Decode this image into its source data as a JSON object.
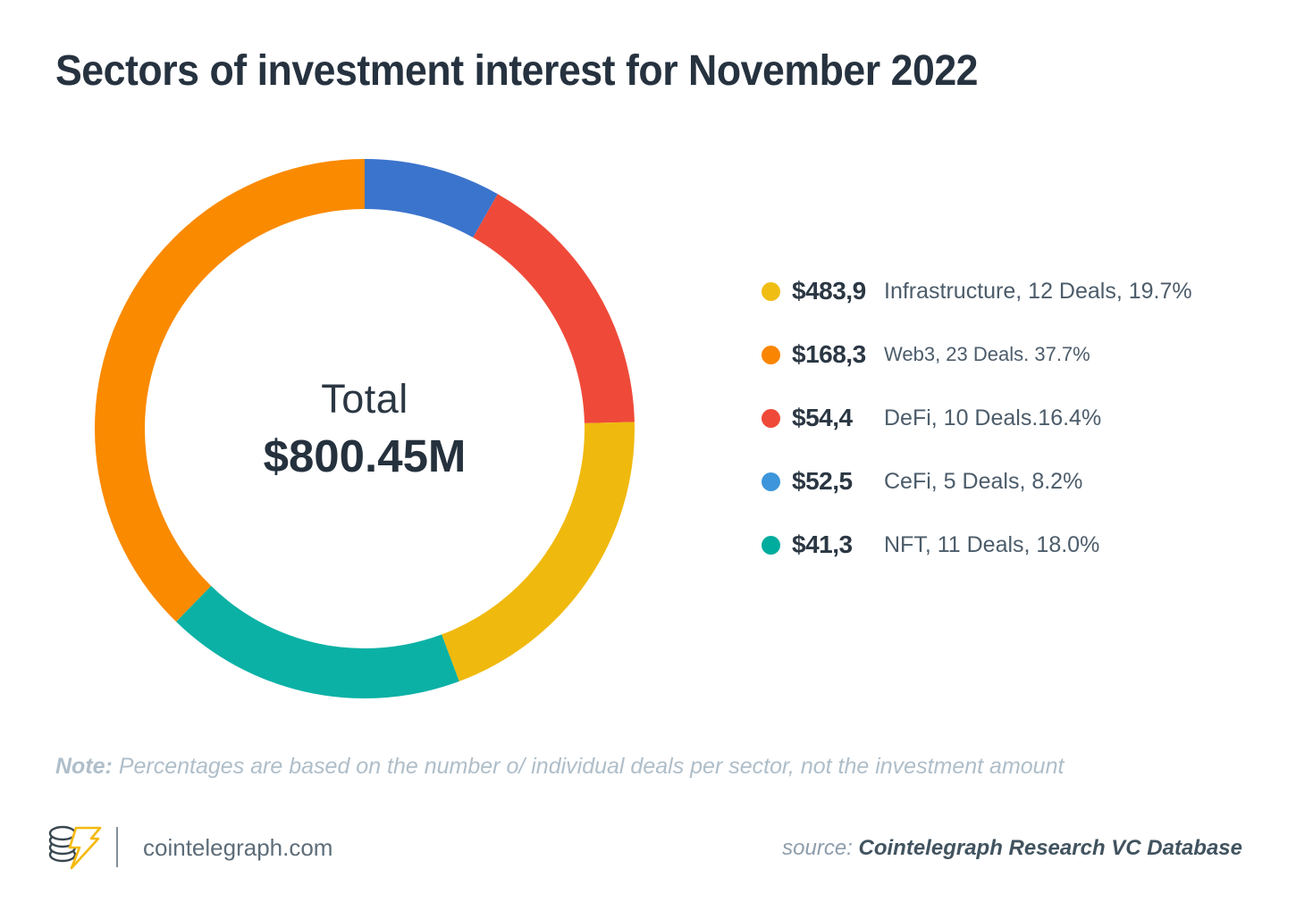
{
  "header": {
    "title": "Sectors of investment interest for November 2022"
  },
  "chart_data": {
    "type": "pie",
    "subtype": "donut",
    "title": "Sectors of investment interest for November 2022",
    "center_label": "Total",
    "center_value": "$800.45M",
    "legend_position": "right",
    "segments": [
      {
        "name": "Infrastructure",
        "value_label": "$483,9",
        "value_musd": 483.9,
        "deals": 12,
        "pct": 19.7,
        "color": "#F0B90D",
        "dot_color": "#F0BD13",
        "label": "Infrastructure, 12 Deals, 19.7%"
      },
      {
        "name": "Web3",
        "value_label": "$168,3",
        "value_musd": 168.3,
        "deals": 23,
        "pct": 37.7,
        "color": "#FA8A00",
        "dot_color": "#FA8500",
        "label": "Web3, 23 Deals. 37.7%"
      },
      {
        "name": "DeFi",
        "value_label": "$54,4",
        "value_musd": 54.4,
        "deals": 10,
        "pct": 16.4,
        "color": "#EF4A39",
        "dot_color": "#EF4A39",
        "label": "DeFi, 10 Deals.16.4%"
      },
      {
        "name": "CeFi",
        "value_label": "$52,5",
        "value_musd": 52.5,
        "deals": 5,
        "pct": 8.2,
        "color": "#3B74CC",
        "dot_color": "#3D96DB",
        "label": "CeFi, 5 Deals, 8.2%"
      },
      {
        "name": "NFT",
        "value_label": "$41,3",
        "value_musd": 41.3,
        "deals": 11,
        "pct": 18.0,
        "color": "#0BB1A5",
        "dot_color": "#00AC9E",
        "label": "NFT, 11 Deals, 18.0%"
      }
    ],
    "donut_order": [
      "CeFi",
      "DeFi",
      "Infrastructure",
      "NFT",
      "Web3"
    ],
    "start_angle_deg": 0,
    "direction": "clockwise"
  },
  "note": {
    "prefix": "Note:",
    "text": " Percentages are based on the number o/ individual deals per sector, not the investment amount"
  },
  "footer": {
    "site": "cointelegraph.com",
    "source_prefix": "source: ",
    "source_name": "Cointelegraph Research VC Database",
    "brand_yellow": "#F5B90D",
    "brand_dark": "#3A4750"
  }
}
